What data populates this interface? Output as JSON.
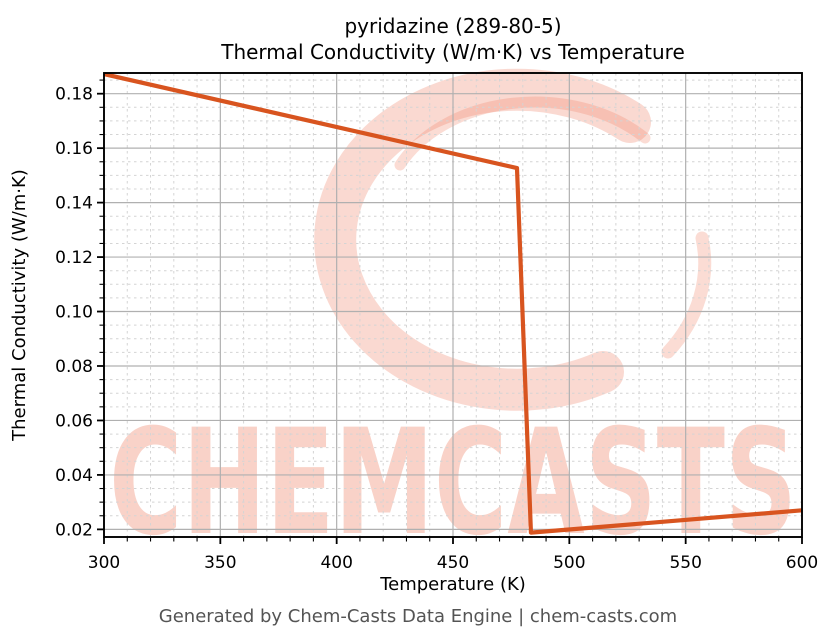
{
  "figure": {
    "title_line1": "pyridazine (289-80-5)",
    "title_line2": "Thermal Conductivity (W/m·K) vs Temperature",
    "footer": "Generated by Chem-Casts Data Engine | chem-casts.com"
  },
  "watermark": {
    "text": "CHEMCASTS",
    "logo": "chemcasts-c-brush-logo",
    "color": "#ef8266"
  },
  "chart_data": {
    "type": "line",
    "title": "pyridazine (289-80-5) Thermal Conductivity (W/m·K) vs Temperature",
    "xlabel": "Temperature (K)",
    "ylabel": "Thermal Conductivity (W/m·K)",
    "xlim": [
      300,
      600
    ],
    "ylim": [
      0.0172,
      0.1876
    ],
    "x_ticks": [
      300,
      350,
      400,
      450,
      500,
      550,
      600
    ],
    "x_minor_step": 10,
    "y_ticks": [
      0.02,
      0.04,
      0.06,
      0.08,
      0.1,
      0.12,
      0.14,
      0.16,
      0.18
    ],
    "y_minor_step": 0.005,
    "y_tick_decimals": 2,
    "grid": {
      "major": true,
      "minor": true,
      "major_color": "#b0b0b0",
      "minor_color": "#d4d4d4",
      "minor_style": "dashed"
    },
    "legend": "none",
    "series": [
      {
        "name": "thermal-conductivity",
        "color": "#d8541f",
        "line_width": 4.2,
        "points": [
          [
            300,
            0.1872
          ],
          [
            477.5,
            0.1527
          ],
          [
            483.5,
            0.0188
          ],
          [
            600,
            0.027
          ]
        ]
      }
    ]
  }
}
